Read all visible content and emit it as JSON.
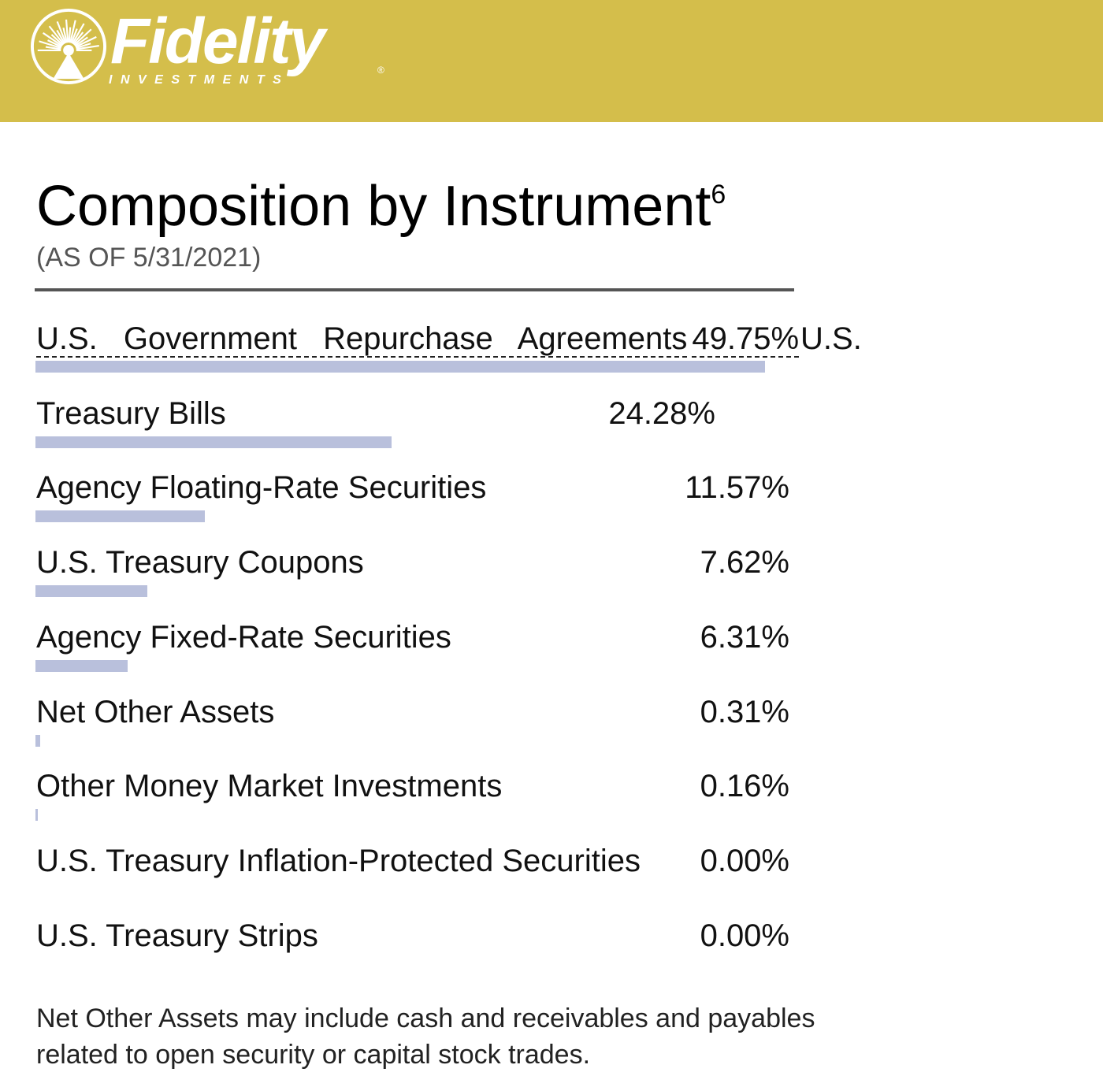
{
  "brand": {
    "name": "Fidelity",
    "sub": "INVESTMENTS",
    "reg_mark": "®",
    "colors": {
      "header": "#d4be4b",
      "bar": "#b9c0dc"
    },
    "icon": "starburst-logo-icon"
  },
  "chart_data": {
    "type": "bar",
    "orientation": "horizontal",
    "title": "Composition by Instrument",
    "title_footnote": "6",
    "subtitle": "(AS OF 5/31/2021)",
    "unit": "%",
    "categories": [
      "U.S. Government Repurchase Agreements",
      "Treasury Bills",
      "Agency Floating-Rate Securities",
      "U.S. Treasury Coupons",
      "Agency Fixed-Rate Securities",
      "Net Other Assets",
      "Other Money Market Investments",
      "U.S. Treasury Inflation-Protected Securities",
      "U.S. Treasury Strips"
    ],
    "values": [
      49.75,
      24.28,
      11.57,
      7.62,
      6.31,
      0.31,
      0.16,
      0.0,
      0.0
    ],
    "value_labels": [
      "49.75%",
      "24.28%",
      "11.57%",
      "7.62%",
      "6.31%",
      "0.31%",
      "0.16%",
      "0.00%",
      "0.00%"
    ],
    "first_row_suffix": "U.S.",
    "grid": false,
    "legend": "none"
  },
  "footnote": "Net Other Assets may include cash and receivables and payables related to open security or capital stock trades."
}
